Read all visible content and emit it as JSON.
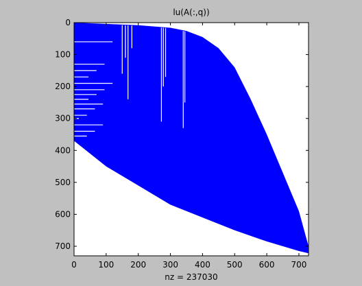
{
  "window": {
    "background": "#c0c0c0"
  },
  "chart_data": {
    "type": "spy",
    "title": "lu(A(:,q))",
    "xlabel": "nz = 237030",
    "ylabel": "",
    "xlim": [
      0,
      730
    ],
    "ylim": [
      730,
      0
    ],
    "xticks": [
      0,
      100,
      200,
      300,
      400,
      500,
      600,
      700
    ],
    "yticks": [
      0,
      100,
      200,
      300,
      400,
      500,
      600,
      700
    ],
    "marker_color": "#0000ff",
    "axes_background": "#ffffff",
    "upper_profile": [
      [
        0,
        0
      ],
      [
        100,
        4
      ],
      [
        200,
        8
      ],
      [
        300,
        16
      ],
      [
        350,
        26
      ],
      [
        400,
        45
      ],
      [
        450,
        80
      ],
      [
        500,
        140
      ],
      [
        550,
        240
      ],
      [
        600,
        350
      ],
      [
        650,
        470
      ],
      [
        700,
        590
      ],
      [
        730,
        700
      ]
    ],
    "lower_profile": [
      [
        0,
        370
      ],
      [
        50,
        410
      ],
      [
        100,
        450
      ],
      [
        200,
        510
      ],
      [
        300,
        570
      ],
      [
        400,
        610
      ],
      [
        500,
        650
      ],
      [
        600,
        685
      ],
      [
        700,
        715
      ],
      [
        730,
        722
      ]
    ],
    "left_fringe_rows": [
      60,
      130,
      150,
      170,
      190,
      210,
      225,
      240,
      255,
      270,
      290,
      300,
      320,
      340,
      355
    ],
    "vertical_gaps": [
      {
        "x": 150,
        "y_end": 160
      },
      {
        "x": 160,
        "y_end": 110
      },
      {
        "x": 168,
        "y_end": 240
      },
      {
        "x": 180,
        "y_end": 80
      },
      {
        "x": 272,
        "y_end": 310
      },
      {
        "x": 278,
        "y_end": 200
      },
      {
        "x": 285,
        "y_end": 170
      },
      {
        "x": 340,
        "y_end": 330
      },
      {
        "x": 345,
        "y_end": 250
      }
    ]
  }
}
